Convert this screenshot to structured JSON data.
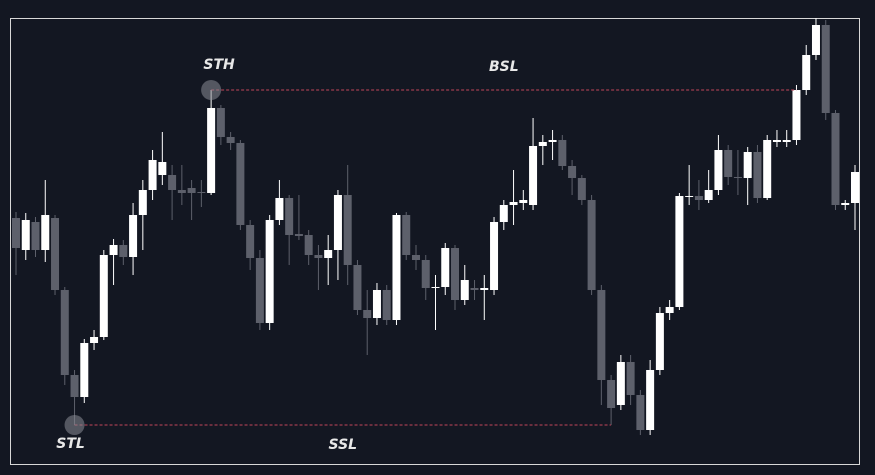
{
  "chart_data": {
    "type": "candlestick",
    "ylim": [
      0,
      447
    ],
    "up_color": "#ffffff",
    "down_color": "#5d606b",
    "level_color": "#c2455a",
    "background": "#131722",
    "pivots": [
      {
        "label": "STH",
        "level": 0
      },
      {
        "label": "STL",
        "level": 1
      }
    ],
    "levels": [
      {
        "label": "BSL",
        "value": 375,
        "side": "high"
      },
      {
        "label": "SSL",
        "value": 40,
        "side": "low"
      }
    ],
    "open": [
      247,
      215,
      243,
      215,
      247,
      175,
      90,
      68,
      122,
      128,
      210,
      220,
      208,
      250,
      275,
      290,
      290,
      275,
      277,
      273,
      272,
      357,
      328,
      322,
      240,
      207,
      142,
      245,
      267,
      231,
      230,
      210,
      207,
      215,
      270,
      200,
      155,
      147,
      175,
      145,
      250,
      210,
      205,
      177,
      178,
      217,
      165,
      177,
      175,
      175,
      243,
      260,
      262,
      260,
      319,
      323,
      325,
      299,
      287,
      265,
      175,
      85,
      60,
      103,
      70,
      35,
      95,
      152,
      158,
      268,
      269,
      265,
      275,
      315,
      288,
      287,
      313,
      267,
      323,
      323,
      325,
      375,
      410,
      440,
      352,
      260,
      262
    ],
    "high": [
      253,
      252,
      248,
      285,
      250,
      178,
      95,
      126,
      135,
      215,
      226,
      225,
      262,
      285,
      315,
      333,
      300,
      300,
      285,
      285,
      375,
      360,
      333,
      325,
      245,
      215,
      250,
      285,
      270,
      270,
      235,
      220,
      230,
      275,
      300,
      205,
      175,
      182,
      180,
      252,
      253,
      220,
      210,
      190,
      222,
      220,
      200,
      185,
      190,
      248,
      265,
      295,
      275,
      347,
      330,
      335,
      330,
      305,
      290,
      270,
      180,
      90,
      110,
      110,
      75,
      105,
      158,
      165,
      272,
      300,
      285,
      295,
      330,
      320,
      315,
      318,
      320,
      330,
      335,
      335,
      380,
      420,
      447,
      445,
      355,
      265,
      300
    ],
    "low": [
      190,
      205,
      208,
      203,
      170,
      80,
      40,
      62,
      115,
      125,
      180,
      200,
      190,
      215,
      265,
      280,
      245,
      260,
      245,
      258,
      270,
      320,
      315,
      235,
      195,
      135,
      135,
      240,
      200,
      225,
      200,
      175,
      180,
      185,
      180,
      150,
      110,
      140,
      140,
      140,
      205,
      195,
      165,
      135,
      170,
      155,
      160,
      165,
      145,
      170,
      235,
      240,
      255,
      255,
      300,
      305,
      295,
      270,
      260,
      170,
      60,
      40,
      55,
      60,
      30,
      30,
      90,
      145,
      155,
      260,
      255,
      262,
      270,
      280,
      270,
      260,
      262,
      265,
      318,
      318,
      320,
      370,
      405,
      345,
      255,
      255,
      235
    ],
    "close": [
      217,
      245,
      215,
      250,
      175,
      90,
      68,
      122,
      128,
      210,
      220,
      208,
      250,
      275,
      305,
      303,
      275,
      272,
      272,
      272,
      357,
      328,
      322,
      240,
      207,
      142,
      245,
      267,
      230,
      229,
      210,
      207,
      215,
      270,
      200,
      155,
      147,
      175,
      145,
      250,
      210,
      205,
      177,
      178,
      217,
      165,
      185,
      175,
      177,
      243,
      260,
      263,
      265,
      319,
      323,
      325,
      299,
      287,
      265,
      175,
      85,
      57,
      103,
      70,
      35,
      95,
      152,
      158,
      269,
      269,
      265,
      275,
      315,
      288,
      287,
      313,
      267,
      325,
      325,
      325,
      375,
      410,
      440,
      352,
      260,
      262,
      293
    ]
  }
}
